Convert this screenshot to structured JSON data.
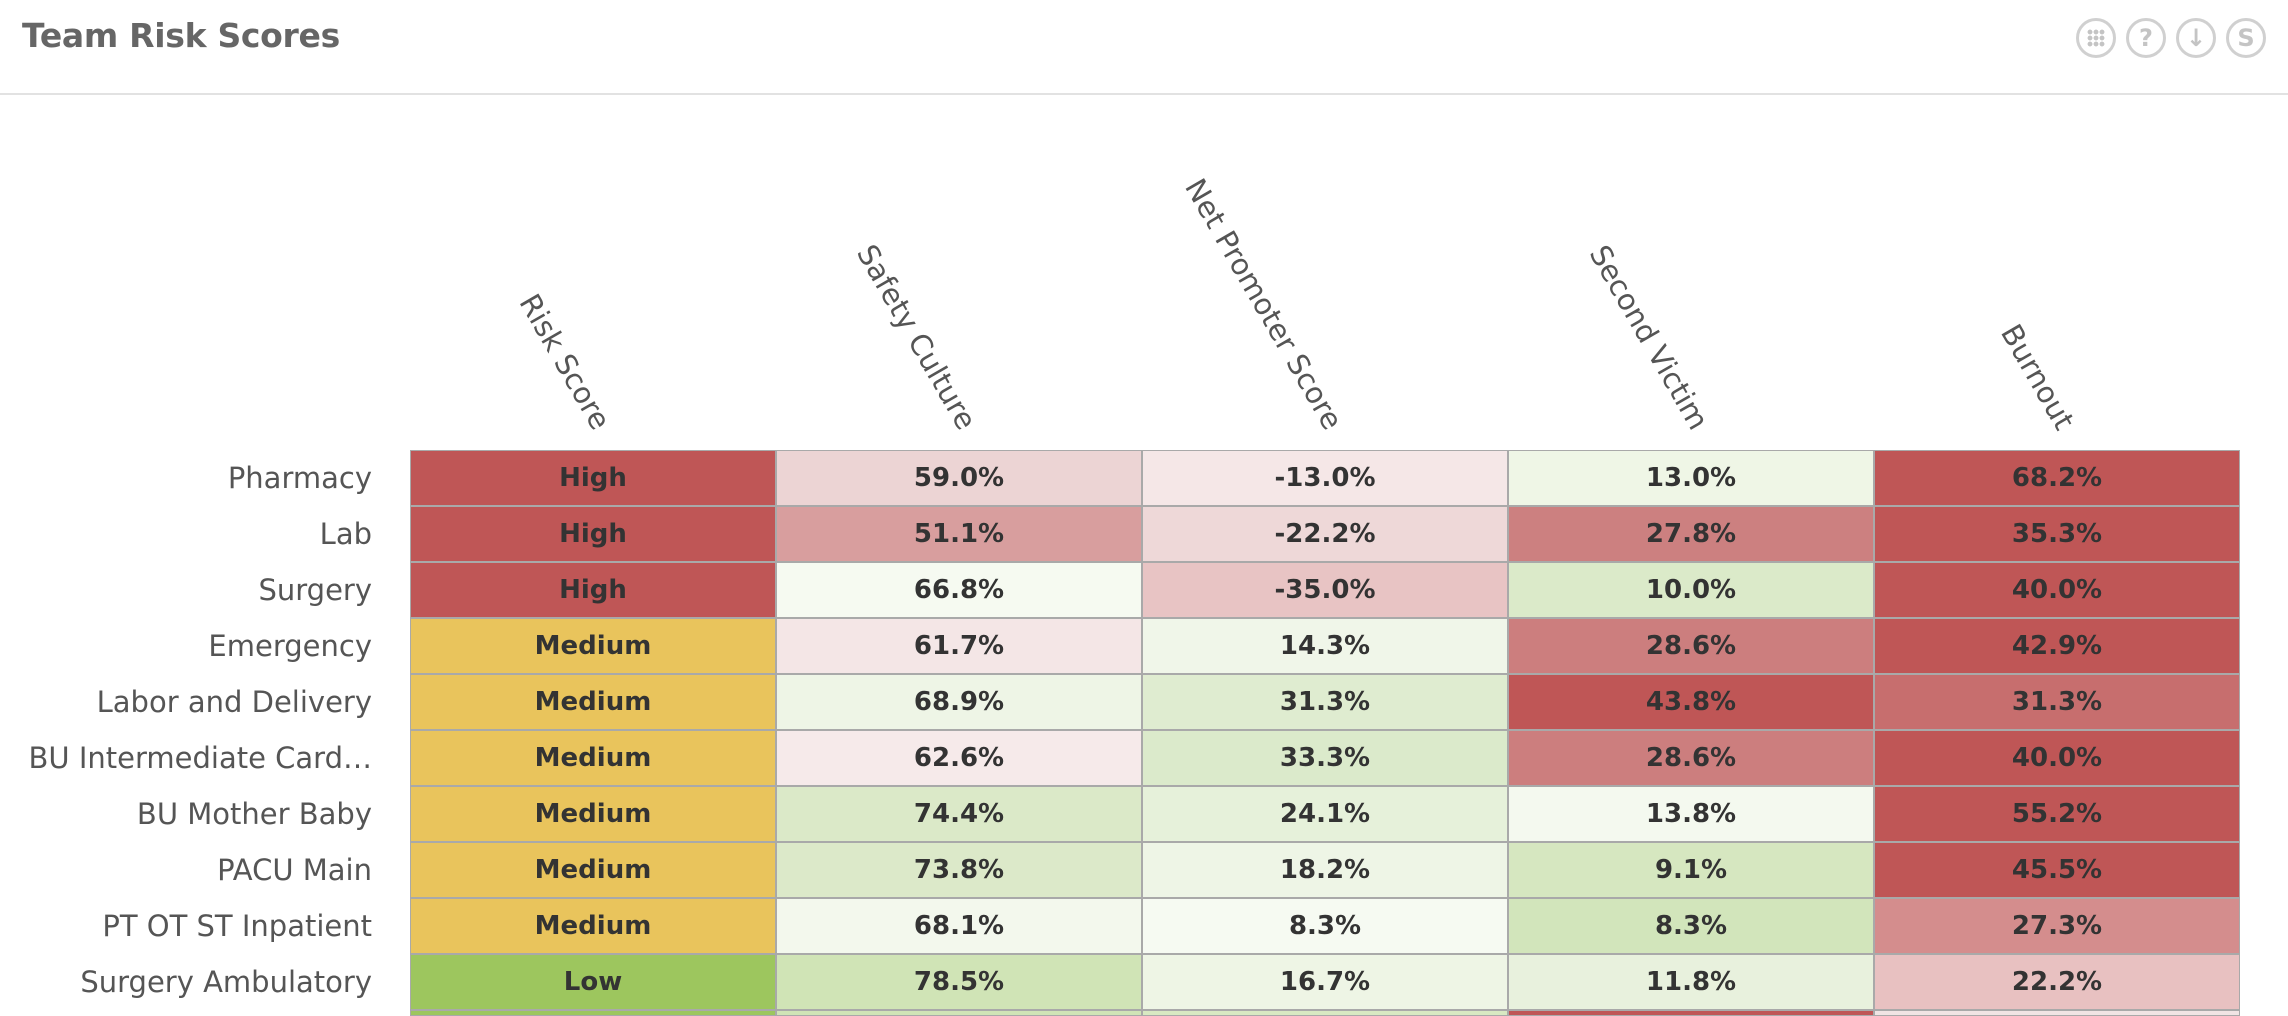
{
  "header": {
    "title": "Team Risk Scores",
    "tools": [
      "grid-icon",
      "help-icon",
      "download-icon",
      "s-icon"
    ],
    "help_glyph": "?",
    "download_glyph": "↓",
    "s_glyph": "S"
  },
  "chart_data": {
    "type": "heatmap",
    "columns": [
      "Risk Score",
      "Safety Culture",
      "Net Promoter Score",
      "Second Victim",
      "Burnout"
    ],
    "rows": [
      {
        "team": "Pharmacy",
        "values": [
          "High",
          "59.0%",
          "-13.0%",
          "13.0%",
          "68.2%"
        ]
      },
      {
        "team": "Lab",
        "values": [
          "High",
          "51.1%",
          "-22.2%",
          "27.8%",
          "35.3%"
        ]
      },
      {
        "team": "Surgery",
        "values": [
          "High",
          "66.8%",
          "-35.0%",
          "10.0%",
          "40.0%"
        ]
      },
      {
        "team": "Emergency",
        "values": [
          "Medium",
          "61.7%",
          "14.3%",
          "28.6%",
          "42.9%"
        ]
      },
      {
        "team": "Labor and Delivery",
        "values": [
          "Medium",
          "68.9%",
          "31.3%",
          "43.8%",
          "31.3%"
        ]
      },
      {
        "team": "BU Intermediate Card…",
        "values": [
          "Medium",
          "62.6%",
          "33.3%",
          "28.6%",
          "40.0%"
        ]
      },
      {
        "team": "BU Mother Baby",
        "values": [
          "Medium",
          "74.4%",
          "24.1%",
          "13.8%",
          "55.2%"
        ]
      },
      {
        "team": "PACU Main",
        "values": [
          "Medium",
          "73.8%",
          "18.2%",
          "9.1%",
          "45.5%"
        ]
      },
      {
        "team": "PT OT ST Inpatient",
        "values": [
          "Medium",
          "68.1%",
          "8.3%",
          "8.3%",
          "27.3%"
        ]
      },
      {
        "team": "Surgery Ambulatory",
        "values": [
          "Low",
          "78.5%",
          "16.7%",
          "11.8%",
          "22.2%"
        ]
      }
    ],
    "colors": [
      [
        "#bf5656",
        "#ecd4d4",
        "#f5e7e7",
        "#eff6e6",
        "#bf5656"
      ],
      [
        "#bf5656",
        "#d89e9e",
        "#eed8d8",
        "#cc8080",
        "#bf5656"
      ],
      [
        "#bf5656",
        "#f6faf1",
        "#e8c4c4",
        "#dbeac9",
        "#bf5656"
      ],
      [
        "#e9c45c",
        "#f4e6e6",
        "#f0f6e9",
        "#cc7e7e",
        "#bf5656"
      ],
      [
        "#e9c45c",
        "#eef5e6",
        "#dfecd0",
        "#bf5656",
        "#c76e6e"
      ],
      [
        "#e9c45c",
        "#f6eaea",
        "#dbeacb",
        "#cc7e7e",
        "#bf5656"
      ],
      [
        "#e9c45c",
        "#dbe9c8",
        "#e6f1da",
        "#f4f9ef",
        "#bf5656"
      ],
      [
        "#e9c45c",
        "#dce9c9",
        "#eef5e6",
        "#d6e7c0",
        "#bf5656"
      ],
      [
        "#e9c45c",
        "#f3f8ed",
        "#f6faf2",
        "#d2e5bb",
        "#d48d8d"
      ],
      [
        "#9dc65e",
        "#d0e4b6",
        "#eef5e5",
        "#e8f1dd",
        "#e8c1c1"
      ]
    ],
    "partial_next_row_colors": [
      "#9dc65e",
      "#d0e4b6",
      "#d8e9c2",
      "#bf5656",
      "#f1e4e4"
    ]
  }
}
